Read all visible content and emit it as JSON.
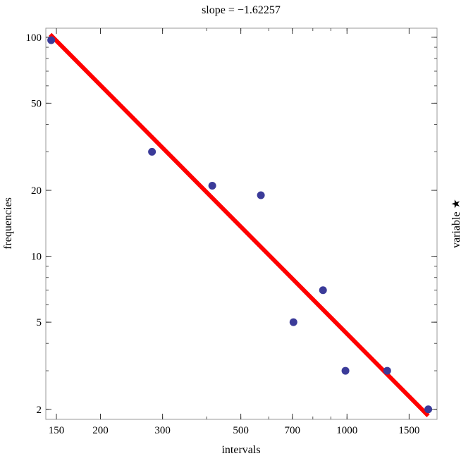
{
  "chart_data": {
    "type": "scatter",
    "title": "slope = −1.62257",
    "xlabel": "intervals",
    "ylabel": "frequencies",
    "side_label": "variable  ★",
    "x_scale": "log",
    "y_scale": "log",
    "xlim": [
      140,
      1800
    ],
    "ylim": [
      1.8,
      110
    ],
    "x_ticks": [
      150,
      200,
      300,
      500,
      700,
      1000,
      1500
    ],
    "x_tick_labels": [
      "150",
      "200",
      "300",
      "500",
      "700",
      "1000",
      "1500"
    ],
    "y_ticks": [
      2,
      5,
      10,
      20,
      50,
      100
    ],
    "y_tick_labels": [
      "2",
      "5",
      "10",
      "20",
      "50",
      "100"
    ],
    "grid": false,
    "series": [
      {
        "points": [
          {
            "x": 145,
            "y": 97
          },
          {
            "x": 280,
            "y": 30
          },
          {
            "x": 415,
            "y": 21
          },
          {
            "x": 570,
            "y": 19
          },
          {
            "x": 705,
            "y": 5
          },
          {
            "x": 855,
            "y": 7
          },
          {
            "x": 990,
            "y": 3
          },
          {
            "x": 1300,
            "y": 3
          },
          {
            "x": 1700,
            "y": 2
          }
        ],
        "color": "#3b3b99"
      }
    ],
    "fit_line": {
      "x": [
        144,
        1700
      ],
      "y": [
        103,
        1.87
      ],
      "color": "#ff0000"
    }
  }
}
